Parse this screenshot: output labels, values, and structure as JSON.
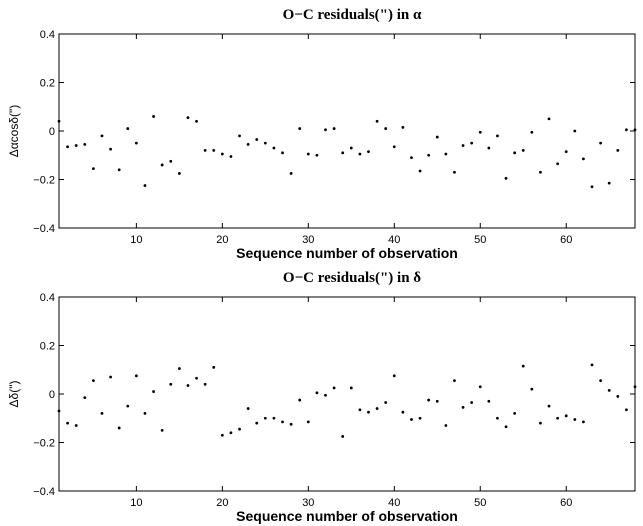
{
  "chart_data": [
    {
      "type": "scatter",
      "title": "O−C residuals(\") in α",
      "xlabel": "Sequence number of observation",
      "ylabel": "Δαcosδ(\")",
      "xlim": [
        1,
        68
      ],
      "ylim": [
        -0.4,
        0.4
      ],
      "xticks": [
        10,
        20,
        30,
        40,
        50,
        60
      ],
      "yticks": [
        -0.4,
        -0.2,
        0,
        0.2,
        0.4
      ],
      "grid": false,
      "x": [
        1,
        2,
        3,
        4,
        5,
        6,
        7,
        8,
        9,
        10,
        11,
        12,
        13,
        14,
        15,
        16,
        17,
        18,
        19,
        20,
        21,
        22,
        23,
        24,
        25,
        26,
        27,
        28,
        29,
        30,
        31,
        32,
        33,
        34,
        35,
        36,
        37,
        38,
        39,
        40,
        41,
        42,
        43,
        44,
        45,
        46,
        47,
        48,
        49,
        50,
        51,
        52,
        53,
        54,
        55,
        56,
        57,
        58,
        59,
        60,
        61,
        62,
        63,
        64,
        65,
        66,
        67,
        68
      ],
      "y": [
        0.04,
        -0.065,
        -0.06,
        -0.055,
        -0.155,
        -0.02,
        -0.075,
        -0.16,
        0.01,
        -0.05,
        -0.225,
        0.06,
        -0.14,
        -0.125,
        -0.175,
        0.055,
        0.04,
        -0.08,
        -0.08,
        -0.095,
        -0.105,
        -0.02,
        -0.055,
        -0.035,
        -0.05,
        -0.07,
        -0.09,
        -0.175,
        0.01,
        -0.095,
        -0.1,
        0.005,
        0.01,
        -0.09,
        -0.07,
        -0.095,
        -0.085,
        0.04,
        0.01,
        -0.065,
        0.015,
        -0.11,
        -0.165,
        -0.1,
        -0.025,
        -0.095,
        -0.17,
        -0.06,
        -0.05,
        -0.005,
        -0.07,
        -0.02,
        -0.195,
        -0.09,
        -0.08,
        -0.005,
        -0.17,
        0.05,
        -0.135,
        -0.085,
        0.0,
        -0.115,
        -0.23,
        -0.05,
        -0.215,
        -0.08,
        0.005,
        0.005
      ]
    },
    {
      "type": "scatter",
      "title": "O−C residuals(\") in δ",
      "xlabel": "Sequence number of observation",
      "ylabel": "Δδ(\")",
      "xlim": [
        1,
        68
      ],
      "ylim": [
        -0.4,
        0.4
      ],
      "xticks": [
        10,
        20,
        30,
        40,
        50,
        60
      ],
      "yticks": [
        -0.4,
        -0.2,
        0,
        0.2,
        0.4
      ],
      "grid": false,
      "x": [
        1,
        2,
        3,
        4,
        5,
        6,
        7,
        8,
        9,
        10,
        11,
        12,
        13,
        14,
        15,
        16,
        17,
        18,
        19,
        20,
        21,
        22,
        23,
        24,
        25,
        26,
        27,
        28,
        29,
        30,
        31,
        32,
        33,
        34,
        35,
        36,
        37,
        38,
        39,
        40,
        41,
        42,
        43,
        44,
        45,
        46,
        47,
        48,
        49,
        50,
        51,
        52,
        53,
        54,
        55,
        56,
        57,
        58,
        59,
        60,
        61,
        62,
        63,
        64,
        65,
        66,
        67,
        68
      ],
      "y": [
        -0.07,
        -0.12,
        -0.13,
        -0.015,
        0.055,
        -0.08,
        0.07,
        -0.14,
        -0.05,
        0.075,
        -0.08,
        0.01,
        -0.15,
        0.04,
        0.105,
        0.035,
        0.065,
        0.04,
        0.11,
        -0.17,
        -0.16,
        -0.145,
        -0.06,
        -0.12,
        -0.1,
        -0.1,
        -0.115,
        -0.125,
        -0.025,
        -0.115,
        0.005,
        -0.005,
        0.025,
        -0.175,
        0.025,
        -0.065,
        -0.075,
        -0.06,
        -0.035,
        0.075,
        -0.075,
        -0.105,
        -0.1,
        -0.025,
        -0.03,
        -0.13,
        0.055,
        -0.055,
        -0.035,
        0.03,
        -0.03,
        -0.1,
        -0.135,
        -0.08,
        0.115,
        0.02,
        -0.12,
        -0.05,
        -0.1,
        -0.09,
        -0.105,
        -0.115,
        0.12,
        0.055,
        0.015,
        -0.01,
        -0.065,
        0.03
      ]
    }
  ]
}
